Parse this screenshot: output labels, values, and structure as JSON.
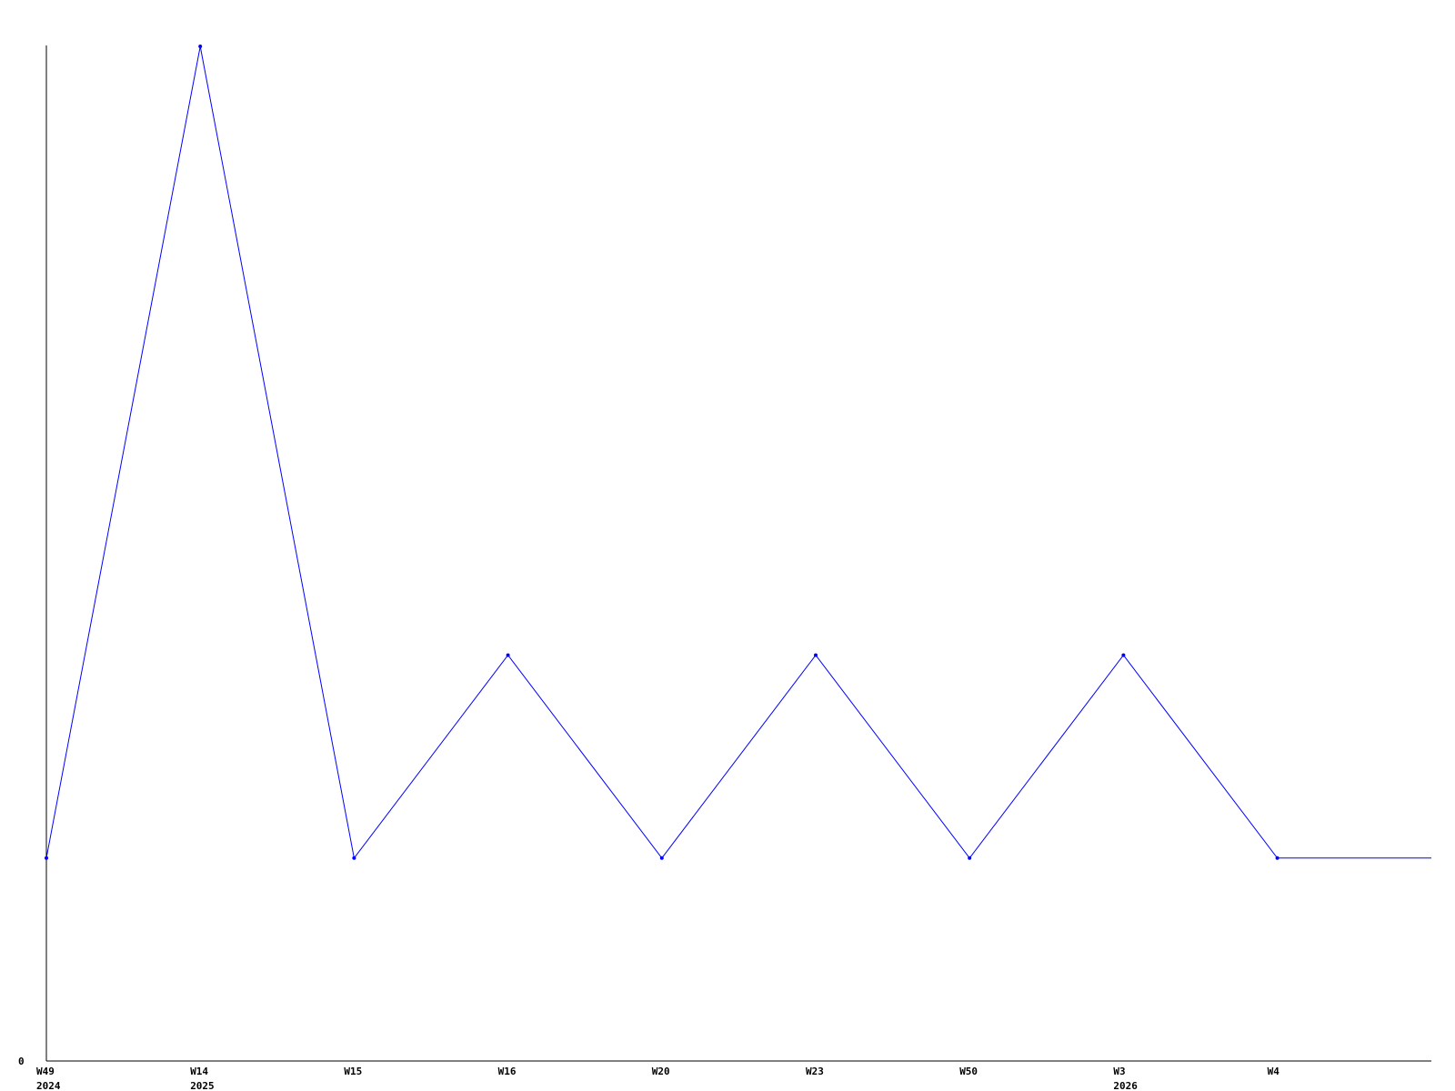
{
  "chart_data": {
    "type": "line",
    "title": "",
    "xlabel": "",
    "ylabel": "",
    "categories": [
      "W49",
      "W14",
      "W15",
      "W16",
      "W20",
      "W23",
      "W50",
      "W3",
      "W4"
    ],
    "year_labels": [
      "2024",
      "2025",
      "",
      "",
      "",
      "",
      "",
      "2026",
      ""
    ],
    "series": [
      {
        "values": [
          1,
          5,
          1,
          2,
          1,
          2,
          1,
          2,
          1
        ],
        "color": "#0000ff"
      }
    ],
    "trailing_value": 1,
    "y_tick_labels": [
      "0"
    ],
    "ylim": [
      0,
      5
    ],
    "grid": false,
    "axis_color": "#000000"
  }
}
